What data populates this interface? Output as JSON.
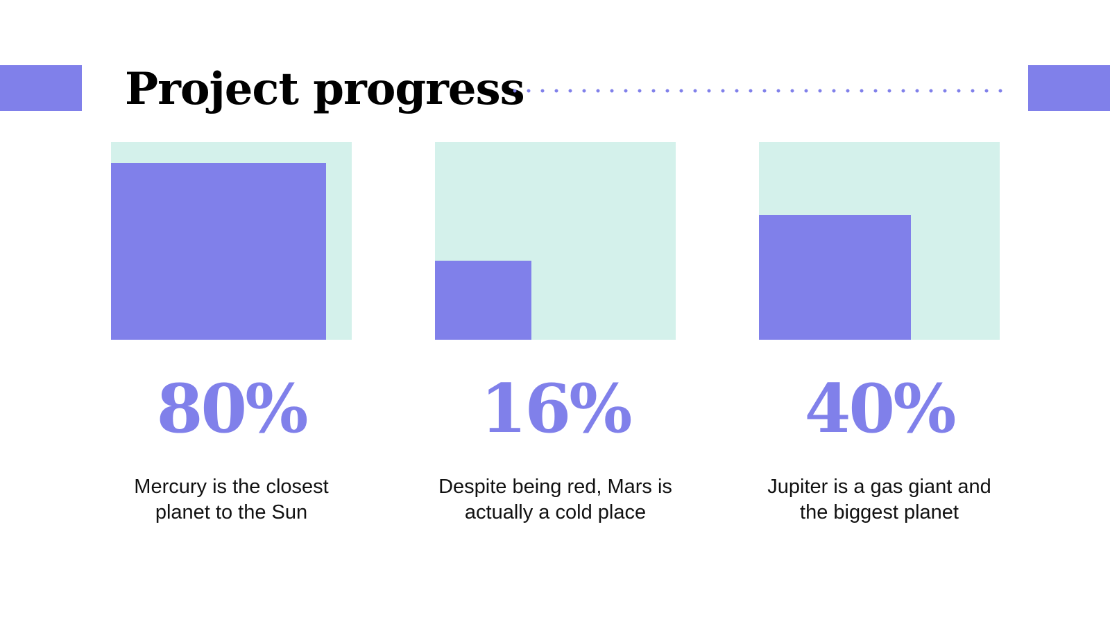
{
  "title": "Project progress",
  "colors": {
    "accent": "#8080ea",
    "card_background": "#d4f1eb",
    "text": "#111111"
  },
  "items": [
    {
      "percent_value": 80,
      "percent_label": "80%",
      "description": "Mercury is the closest planet to the Sun"
    },
    {
      "percent_value": 16,
      "percent_label": "16%",
      "description": "Despite being red, Mars is actually a cold place"
    },
    {
      "percent_value": 40,
      "percent_label": "40%",
      "description": "Jupiter is a gas giant and the biggest planet"
    }
  ]
}
